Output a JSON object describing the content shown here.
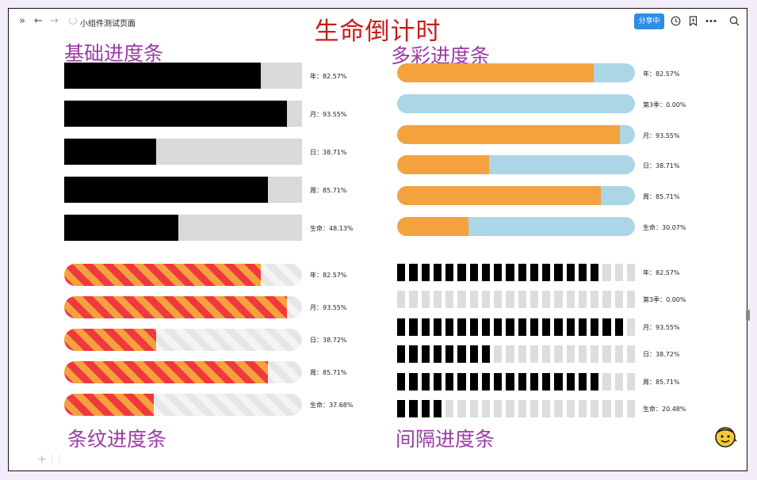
{
  "topbar": {
    "expand_icon": "»",
    "back_icon": "←",
    "forward_icon": "→",
    "page_title": "小组件测试页面",
    "share_label": "分享中",
    "history_icon": "clock-icon",
    "bookmark_icon": "bookmark-icon",
    "more_icon": "more-icon",
    "search_icon": "search-icon"
  },
  "main_title": "生命倒计时",
  "sections": {
    "basic": "基础进度条",
    "colorful": "多彩进度条",
    "striped": "条纹进度条",
    "segmented": "间隔进度条"
  },
  "basic_bars": [
    {
      "label": "年：82.57%",
      "value": 82.57
    },
    {
      "label": "月：93.55%",
      "value": 93.55
    },
    {
      "label": "日：38.71%",
      "value": 38.71
    },
    {
      "label": "周：85.71%",
      "value": 85.71
    },
    {
      "label": "生命：48.13%",
      "value": 48.13
    }
  ],
  "colorful_bars": [
    {
      "label": "年：82.57%",
      "value": 82.57
    },
    {
      "label": "第3季：0.00%",
      "value": 0.0
    },
    {
      "label": "月：93.55%",
      "value": 93.55
    },
    {
      "label": "日：38.71%",
      "value": 38.71
    },
    {
      "label": "周：85.71%",
      "value": 85.71
    },
    {
      "label": "生命：30.07%",
      "value": 30.07
    }
  ],
  "striped_bars": [
    {
      "label": "年：82.57%",
      "value": 82.57
    },
    {
      "label": "月：93.55%",
      "value": 93.55
    },
    {
      "label": "日：38.72%",
      "value": 38.72
    },
    {
      "label": "周：85.71%",
      "value": 85.71
    },
    {
      "label": "生命：37.68%",
      "value": 37.68
    }
  ],
  "segmented_bars": [
    {
      "label": "年：82.57%",
      "value": 82.57
    },
    {
      "label": "第3季：0.00%",
      "value": 0.0
    },
    {
      "label": "月：93.55%",
      "value": 93.55
    },
    {
      "label": "日：38.72%",
      "value": 38.72
    },
    {
      "label": "周：85.71%",
      "value": 85.71
    },
    {
      "label": "生命：20.48%",
      "value": 20.48
    }
  ],
  "colors": {
    "title": "#cc1c1c",
    "section": "#9b3aa6",
    "share_button": "#2e8de6",
    "orange": "#f4a23d",
    "light_blue": "#acd6e6",
    "stripe_red": "#f0393f"
  },
  "footer": {
    "add_icon": "+",
    "drag_icon": "⋮⋮"
  }
}
